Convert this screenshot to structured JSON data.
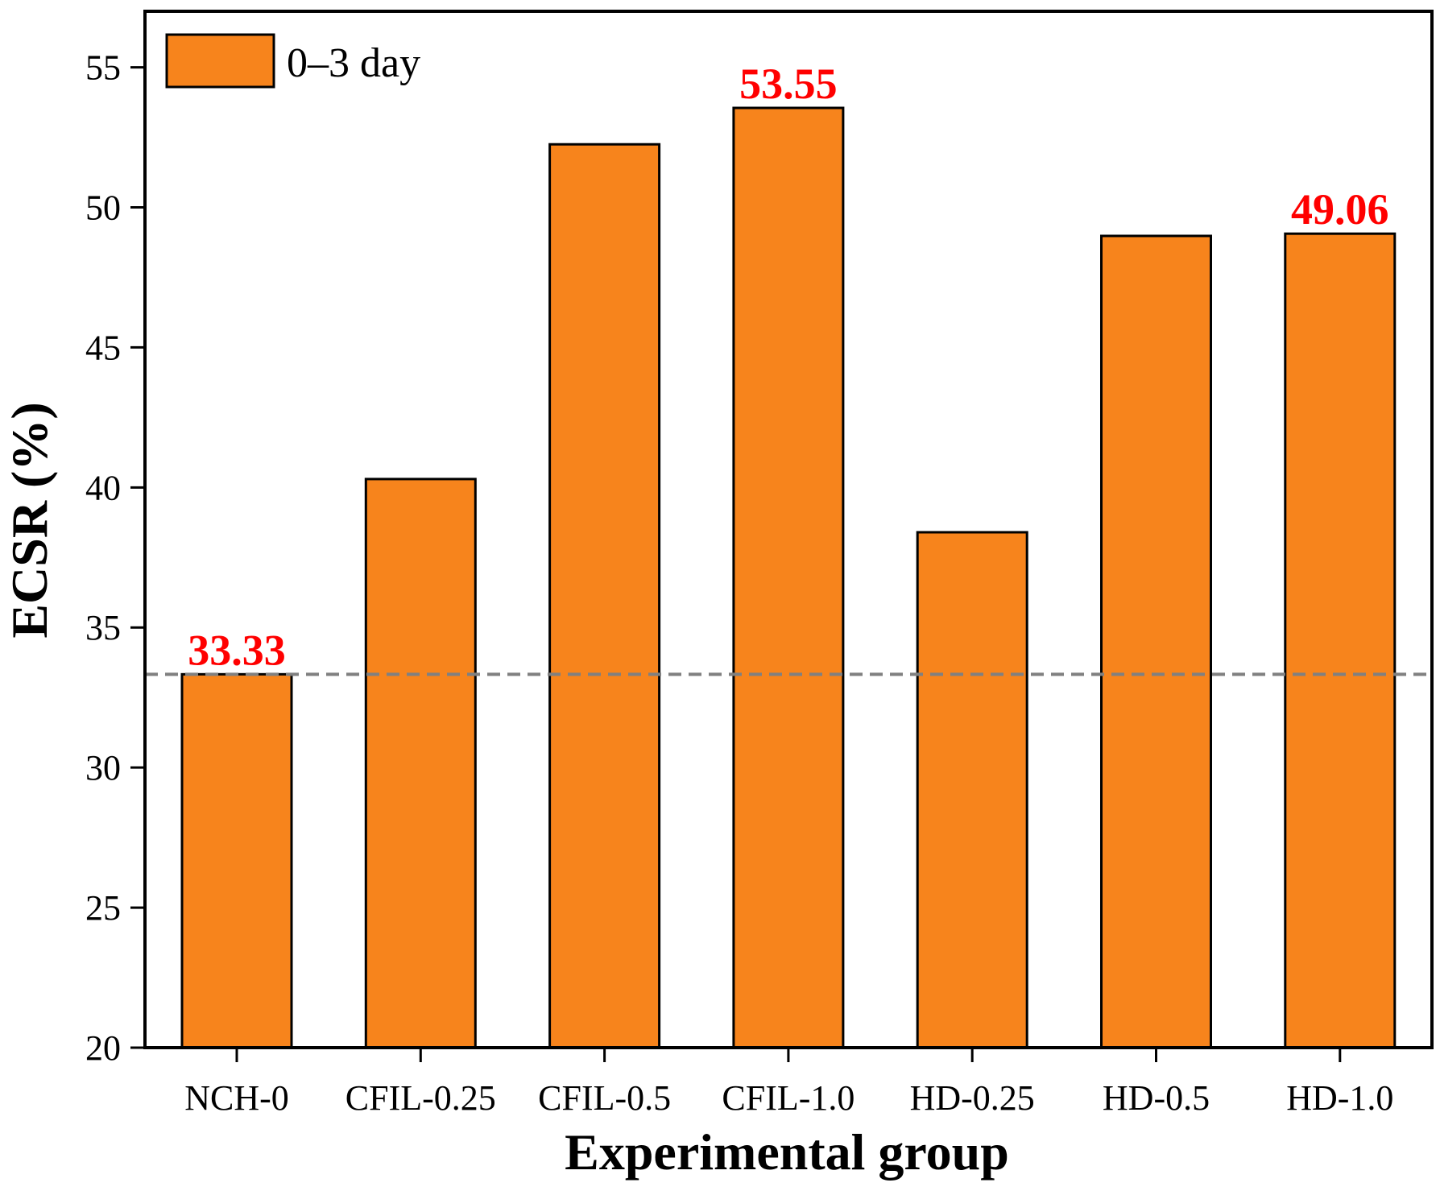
{
  "chart_data": {
    "type": "bar",
    "title": "",
    "xlabel": "Experimental group",
    "ylabel": "ECSR (%)",
    "ylim": [
      20,
      57
    ],
    "yticks": [
      20,
      25,
      30,
      35,
      40,
      45,
      50,
      55
    ],
    "categories": [
      "NCH-0",
      "CFIL-0.25",
      "CFIL-0.5",
      "CFIL-1.0",
      "HD-0.25",
      "HD-0.5",
      "HD-1.0"
    ],
    "series": [
      {
        "name": "0–3 day",
        "values": [
          33.33,
          40.3,
          52.25,
          53.55,
          38.4,
          48.98,
          49.06
        ],
        "color": "#f7841c",
        "edge_color": "#000000"
      }
    ],
    "data_labels": [
      {
        "category": "NCH-0",
        "text": "33.33"
      },
      {
        "category": "CFIL-1.0",
        "text": "53.55"
      },
      {
        "category": "HD-1.0",
        "text": "49.06"
      }
    ],
    "data_label_color": "#ff0000",
    "reference_line": {
      "value": 33.33,
      "style": "dashed",
      "color": "#808080"
    },
    "legend": {
      "position": "top-left"
    },
    "grid": false
  }
}
